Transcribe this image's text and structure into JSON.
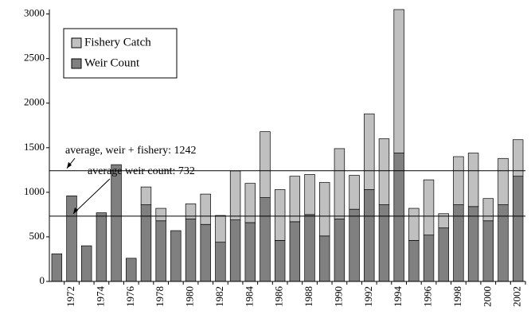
{
  "chart_data": {
    "type": "stacked-bar",
    "categories": [
      null,
      "1972",
      null,
      "1974",
      null,
      "1976",
      null,
      "1978",
      null,
      "1980",
      null,
      "1982",
      null,
      "1984",
      null,
      "1986",
      null,
      "1988",
      null,
      "1990",
      null,
      "1992",
      null,
      "1994",
      null,
      "1996",
      null,
      "1998",
      null,
      "2000",
      null,
      "2002"
    ],
    "series": [
      {
        "name": "Weir Count",
        "color": "#808080",
        "values": [
          310,
          960,
          400,
          770,
          1310,
          260,
          860,
          680,
          570,
          700,
          640,
          440,
          690,
          660,
          940,
          460,
          670,
          750,
          510,
          700,
          810,
          1030,
          860,
          1440,
          460,
          520,
          600,
          860,
          840,
          680,
          860,
          1180
        ]
      },
      {
        "name": "Fishery Catch",
        "color": "#c0c0c0",
        "values": [
          0,
          0,
          0,
          0,
          0,
          0,
          200,
          140,
          0,
          170,
          340,
          300,
          550,
          440,
          740,
          570,
          510,
          450,
          600,
          790,
          380,
          850,
          740,
          1610,
          360,
          620,
          160,
          540,
          600,
          250,
          520,
          410
        ]
      }
    ],
    "reference_lines": [
      {
        "value": 1242,
        "label": "average, weir + fishery: 1242"
      },
      {
        "value": 732,
        "label": "average weir count: 732"
      }
    ],
    "ylim": [
      0,
      3050
    ],
    "yticks": [
      0,
      500,
      1000,
      1500,
      2000,
      2500,
      3000
    ],
    "legend": "upper-left"
  }
}
